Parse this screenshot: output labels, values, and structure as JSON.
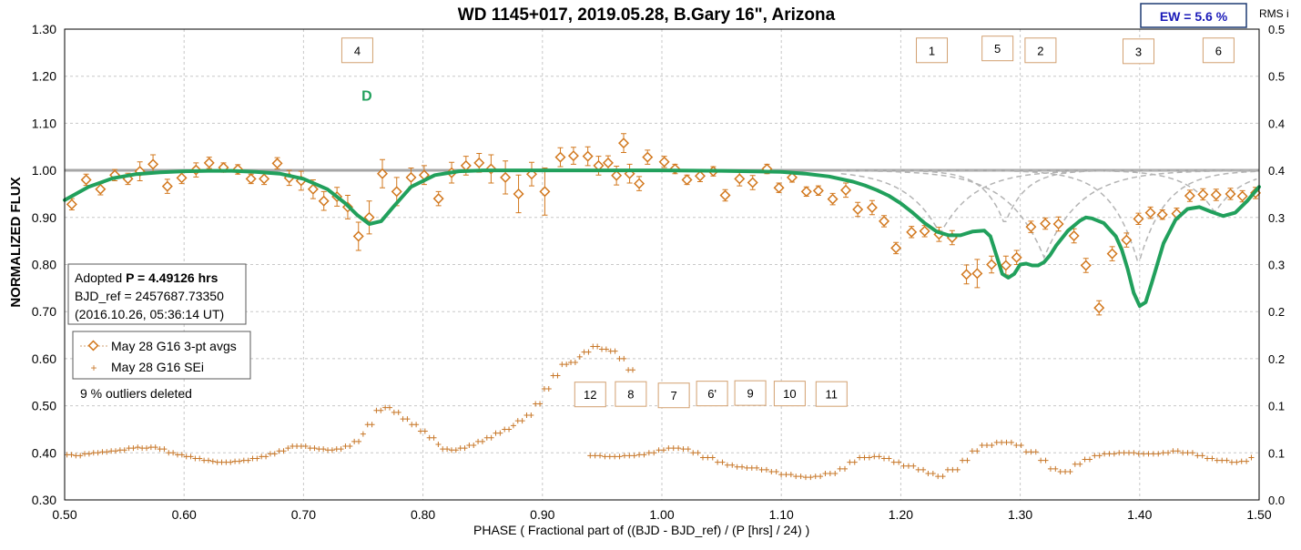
{
  "chart_data": {
    "type": "scatter",
    "title": "WD 1145+017, 2019.05.28, B.Gary 16\", Arizona",
    "xlabel": "PHASE ( Fractional part of ((BJD - BJD_ref) / (P [hrs] / 24) )",
    "ylabel": "NORMALIZED FLUX",
    "y2label": "RMS i",
    "xlim": [
      0.5,
      1.5
    ],
    "ylim": [
      0.3,
      1.3
    ],
    "y2lim": [
      0.0,
      0.5
    ],
    "xticks": [
      "0.50",
      "0.60",
      "0.70",
      "0.80",
      "0.90",
      "1.00",
      "1.10",
      "1.20",
      "1.30",
      "1.40",
      "1.50"
    ],
    "yticks": [
      "0.30",
      "0.40",
      "0.50",
      "0.60",
      "0.70",
      "0.80",
      "0.90",
      "1.00",
      "1.10",
      "1.20",
      "1.30"
    ],
    "y2ticks": [
      "0.0",
      "0.1",
      "0.1",
      "0.2",
      "0.2",
      "0.3",
      "0.3",
      "0.4",
      "0.4",
      "0.5",
      "0.5"
    ],
    "grid": true,
    "ew_label": "EW =  5.6 %",
    "info_box": {
      "line1_prefix": "Adopted ",
      "line1_bold": "P = 4.49126 hrs",
      "line2": "BJD_ref = 2457687.73350",
      "line3": "(2016.10.26, 05:36:14 UT)"
    },
    "legend_position": "left",
    "legend": [
      {
        "name": "May 28 G16 3-pt avgs",
        "color": "#d2781e",
        "marker": "diamond"
      },
      {
        "name": "May 28 G16 SEi",
        "color": "#c8782a",
        "marker": "plus"
      }
    ],
    "outliers_note": "9 % outliers deleted",
    "annotations": [
      {
        "text": "4",
        "x": 0.745,
        "y": 1.255
      },
      {
        "text": "1",
        "x": 1.226,
        "y": 1.255
      },
      {
        "text": "5",
        "x": 1.281,
        "y": 1.259
      },
      {
        "text": "2",
        "x": 1.317,
        "y": 1.255
      },
      {
        "text": "3",
        "x": 1.399,
        "y": 1.253
      },
      {
        "text": "6",
        "x": 1.466,
        "y": 1.255
      },
      {
        "text": "D",
        "x": 0.753,
        "y": 1.16,
        "style": "green"
      },
      {
        "text": "12",
        "x": 0.94,
        "y": 0.524
      },
      {
        "text": "8",
        "x": 0.974,
        "y": 0.525
      },
      {
        "text": "7",
        "x": 1.01,
        "y": 0.522
      },
      {
        "text": "6'",
        "x": 1.042,
        "y": 0.526
      },
      {
        "text": "9",
        "x": 1.074,
        "y": 0.527
      },
      {
        "text": "10",
        "x": 1.107,
        "y": 0.526
      },
      {
        "text": "11",
        "x": 1.142,
        "y": 0.525
      }
    ],
    "series": [
      {
        "name": "May 28 G16 3-pt avgs",
        "color": "#d2781e",
        "x": [
          0.506,
          0.518,
          0.53,
          0.542,
          0.553,
          0.563,
          0.574,
          0.586,
          0.598,
          0.61,
          0.621,
          0.633,
          0.645,
          0.656,
          0.667,
          0.678,
          0.688,
          0.698,
          0.708,
          0.717,
          0.728,
          0.737,
          0.746,
          0.755,
          0.766,
          0.778,
          0.79,
          0.801,
          0.813,
          0.824,
          0.836,
          0.847,
          0.857,
          0.869,
          0.88,
          0.891,
          0.902,
          0.915,
          0.926,
          0.938,
          0.947,
          0.955,
          0.962,
          0.968,
          0.973,
          0.981,
          0.988,
          1.002,
          1.011,
          1.021,
          1.032,
          1.043,
          1.053,
          1.065,
          1.076,
          1.088,
          1.098,
          1.109,
          1.121,
          1.131,
          1.143,
          1.154,
          1.164,
          1.176,
          1.186,
          1.196,
          1.209,
          1.22,
          1.232,
          1.243,
          1.255,
          1.264,
          1.276,
          1.288,
          1.297,
          1.309,
          1.321,
          1.332,
          1.345,
          1.355,
          1.366,
          1.377,
          1.389,
          1.399,
          1.409,
          1.419,
          1.431,
          1.442,
          1.453,
          1.464,
          1.476,
          1.486,
          1.497
        ],
        "y": [
          0.928,
          0.98,
          0.96,
          0.99,
          0.982,
          0.998,
          1.013,
          0.966,
          0.984,
          1.001,
          1.016,
          1.006,
          1.002,
          0.982,
          0.982,
          1.015,
          0.984,
          0.978,
          0.96,
          0.935,
          0.944,
          0.922,
          0.86,
          0.9,
          0.993,
          0.955,
          0.985,
          0.99,
          0.94,
          0.995,
          1.01,
          1.016,
          1.003,
          0.985,
          0.95,
          0.992,
          0.955,
          1.028,
          1.031,
          1.03,
          1.01,
          1.016,
          0.989,
          1.058,
          0.993,
          0.972,
          1.028,
          1.018,
          1.003,
          0.98,
          0.988,
          0.998,
          0.947,
          0.982,
          0.974,
          1.003,
          0.963,
          0.985,
          0.955,
          0.957,
          0.939,
          0.958,
          0.917,
          0.921,
          0.892,
          0.835,
          0.869,
          0.871,
          0.864,
          0.857,
          0.779,
          0.781,
          0.8,
          0.798,
          0.815,
          0.88,
          0.887,
          0.886,
          0.861,
          0.798,
          0.708,
          0.823,
          0.852,
          0.897,
          0.91,
          0.906,
          0.908,
          0.946,
          0.949,
          0.948,
          0.95,
          0.945,
          0.952
        ],
        "err": [
          0.012,
          0.012,
          0.012,
          0.012,
          0.012,
          0.02,
          0.02,
          0.015,
          0.012,
          0.015,
          0.012,
          0.01,
          0.01,
          0.01,
          0.012,
          0.012,
          0.016,
          0.02,
          0.02,
          0.02,
          0.02,
          0.025,
          0.03,
          0.035,
          0.03,
          0.03,
          0.02,
          0.02,
          0.015,
          0.022,
          0.02,
          0.02,
          0.03,
          0.035,
          0.04,
          0.025,
          0.05,
          0.02,
          0.018,
          0.02,
          0.02,
          0.015,
          0.02,
          0.02,
          0.02,
          0.015,
          0.015,
          0.012,
          0.01,
          0.01,
          0.012,
          0.01,
          0.012,
          0.015,
          0.015,
          0.01,
          0.01,
          0.01,
          0.01,
          0.01,
          0.012,
          0.015,
          0.015,
          0.015,
          0.012,
          0.012,
          0.012,
          0.012,
          0.015,
          0.015,
          0.02,
          0.03,
          0.018,
          0.02,
          0.015,
          0.012,
          0.012,
          0.015,
          0.015,
          0.015,
          0.015,
          0.015,
          0.015,
          0.012,
          0.012,
          0.01,
          0.012,
          0.012,
          0.012,
          0.012,
          0.012,
          0.012,
          0.012
        ]
      },
      {
        "name": "May 28 G16 SEi",
        "color": "#c8782a",
        "axis": "right",
        "x_start": 0.502,
        "x_end": 0.98,
        "x_step": 0.0037,
        "x_start2": 0.94,
        "x_end2": 1.497,
        "x_step2": 0.0041,
        "y": [
          0.048,
          0.047,
          0.049,
          0.05,
          0.051,
          0.052,
          0.053,
          0.055,
          0.056,
          0.055,
          0.056,
          0.054,
          0.05,
          0.048,
          0.046,
          0.044,
          0.042,
          0.041,
          0.04,
          0.04,
          0.041,
          0.042,
          0.044,
          0.046,
          0.049,
          0.052,
          0.055,
          0.057,
          0.057,
          0.055,
          0.054,
          0.053,
          0.054,
          0.057,
          0.062,
          0.07,
          0.08,
          0.095,
          0.098,
          0.093,
          0.086,
          0.08,
          0.073,
          0.066,
          0.059,
          0.054,
          0.053,
          0.055,
          0.058,
          0.062,
          0.066,
          0.071,
          0.075,
          0.079,
          0.084,
          0.09,
          0.102,
          0.118,
          0.132,
          0.144,
          0.146,
          0.152,
          0.157,
          0.163,
          0.16,
          0.158,
          0.15,
          0.138,
          0.105
        ],
        "y2": [
          0.047,
          0.046,
          0.046,
          0.047,
          0.048,
          0.05,
          0.053,
          0.055,
          0.054,
          0.05,
          0.045,
          0.04,
          0.037,
          0.035,
          0.034,
          0.032,
          0.03,
          0.027,
          0.025,
          0.024,
          0.025,
          0.028,
          0.033,
          0.04,
          0.045,
          0.046,
          0.044,
          0.04,
          0.036,
          0.032,
          0.028,
          0.025,
          0.032,
          0.042,
          0.052,
          0.058,
          0.061,
          0.061,
          0.058,
          0.051,
          0.042,
          0.033,
          0.03,
          0.038,
          0.043,
          0.047,
          0.049,
          0.05,
          0.05,
          0.049,
          0.049,
          0.05,
          0.052,
          0.05,
          0.047,
          0.044,
          0.042,
          0.04,
          0.041,
          0.045
        ]
      },
      {
        "name": "model fit",
        "color": "#21a05c",
        "type": "line",
        "x": [
          0.5,
          0.52,
          0.54,
          0.56,
          0.58,
          0.6,
          0.62,
          0.64,
          0.66,
          0.68,
          0.7,
          0.72,
          0.735,
          0.745,
          0.755,
          0.765,
          0.775,
          0.79,
          0.81,
          0.83,
          0.85,
          0.9,
          0.95,
          1.0,
          1.05,
          1.1,
          1.12,
          1.14,
          1.16,
          1.17,
          1.18,
          1.19,
          1.2,
          1.21,
          1.22,
          1.23,
          1.24,
          1.25,
          1.26,
          1.27,
          1.275,
          1.28,
          1.285,
          1.29,
          1.295,
          1.3,
          1.305,
          1.31,
          1.315,
          1.32,
          1.325,
          1.33,
          1.34,
          1.35,
          1.355,
          1.36,
          1.37,
          1.38,
          1.385,
          1.39,
          1.395,
          1.4,
          1.405,
          1.41,
          1.42,
          1.43,
          1.44,
          1.45,
          1.46,
          1.47,
          1.48,
          1.49,
          1.5
        ],
        "y": [
          0.937,
          0.965,
          0.983,
          0.992,
          0.996,
          0.998,
          0.999,
          0.999,
          0.997,
          0.993,
          0.982,
          0.96,
          0.93,
          0.905,
          0.886,
          0.892,
          0.922,
          0.965,
          0.99,
          0.998,
          1.0,
          1.0,
          1.0,
          1.0,
          0.999,
          0.997,
          0.993,
          0.987,
          0.976,
          0.968,
          0.958,
          0.946,
          0.93,
          0.91,
          0.888,
          0.87,
          0.862,
          0.862,
          0.87,
          0.872,
          0.86,
          0.82,
          0.78,
          0.772,
          0.78,
          0.8,
          0.802,
          0.798,
          0.798,
          0.805,
          0.82,
          0.84,
          0.872,
          0.893,
          0.9,
          0.898,
          0.888,
          0.86,
          0.832,
          0.79,
          0.74,
          0.712,
          0.72,
          0.76,
          0.845,
          0.895,
          0.918,
          0.922,
          0.912,
          0.903,
          0.91,
          0.935,
          0.965
        ]
      }
    ],
    "component_dips": [
      {
        "center": 1.233,
        "depth": 0.135,
        "width": 0.028
      },
      {
        "center": 1.287,
        "depth": 0.115,
        "width": 0.017
      },
      {
        "center": 1.32,
        "depth": 0.185,
        "width": 0.03
      },
      {
        "center": 1.399,
        "depth": 0.2,
        "width": 0.022
      },
      {
        "center": 1.463,
        "depth": 0.09,
        "width": 0.022
      }
    ]
  }
}
